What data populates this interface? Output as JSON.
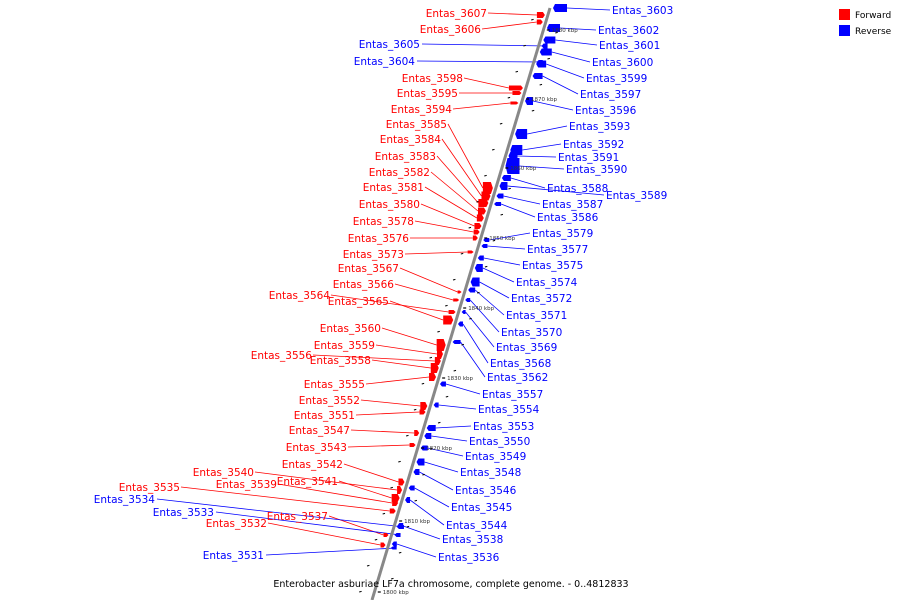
{
  "caption": "Enterobacter asburiae LF7a chromosome, complete genome. - 0..4812833",
  "legend": [
    {
      "label": "Forward",
      "color": "#ff0000"
    },
    {
      "label": "Reverse",
      "color": "#0000ff"
    }
  ],
  "colors": {
    "forward": "#ff0000",
    "reverse": "#0000ff",
    "backbone": "#888888"
  },
  "kbp_labels": [
    "1880 kbp",
    "1870 kbp",
    "1860 kbp",
    "1850 kbp",
    "1840 kbp",
    "1830 kbp",
    "1820 kbp",
    "1810 kbp",
    "1800 kbp"
  ],
  "forward_genes": [
    "Entas_3607",
    "Entas_3606",
    "Entas_3598",
    "Entas_3595",
    "Entas_3594",
    "Entas_3585",
    "Entas_3584",
    "Entas_3583",
    "Entas_3582",
    "Entas_3581",
    "Entas_3580",
    "Entas_3578",
    "Entas_3576",
    "Entas_3573",
    "Entas_3567",
    "Entas_3566",
    "Entas_3564",
    "Entas_3565",
    "Entas_3560",
    "Entas_3559",
    "Entas_3556",
    "Entas_3558",
    "Entas_3555",
    "Entas_3552",
    "Entas_3551",
    "Entas_3547",
    "Entas_3543",
    "Entas_3542",
    "Entas_3540",
    "Entas_3541",
    "Entas_3539",
    "Entas_3535",
    "Entas_3537",
    "Entas_3532"
  ],
  "reverse_genes": [
    "Entas_3605",
    "Entas_3604",
    "Entas_3534",
    "Entas_3533",
    "Entas_3531",
    "Entas_3603",
    "Entas_3602",
    "Entas_3601",
    "Entas_3600",
    "Entas_3599",
    "Entas_3597",
    "Entas_3596",
    "Entas_3593",
    "Entas_3592",
    "Entas_3591",
    "Entas_3590",
    "Entas_3588",
    "Entas_3589",
    "Entas_3587",
    "Entas_3586",
    "Entas_3579",
    "Entas_3577",
    "Entas_3575",
    "Entas_3574",
    "Entas_3572",
    "Entas_3571",
    "Entas_3570",
    "Entas_3569",
    "Entas_3568",
    "Entas_3562",
    "Entas_3557",
    "Entas_3554",
    "Entas_3553",
    "Entas_3550",
    "Entas_3549",
    "Entas_3548",
    "Entas_3546",
    "Entas_3545",
    "Entas_3544",
    "Entas_3538",
    "Entas_3536"
  ]
}
